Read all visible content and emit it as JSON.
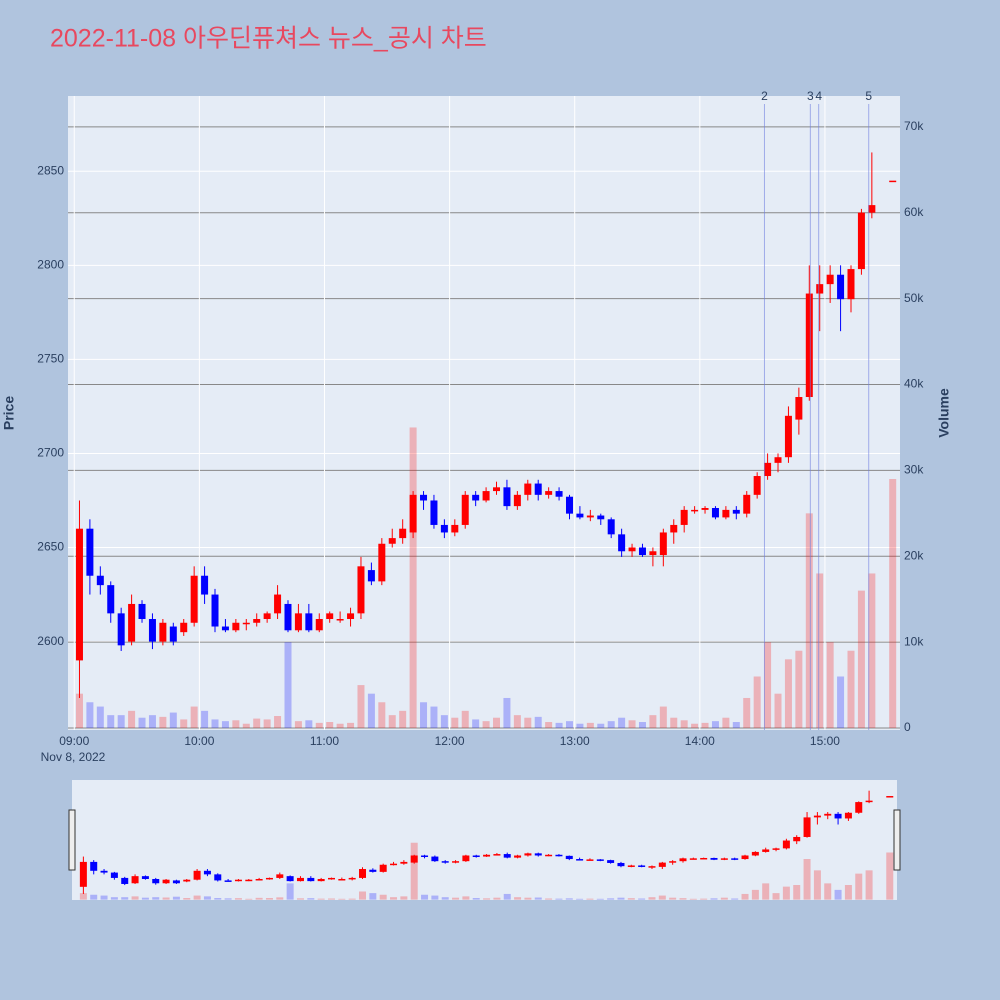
{
  "chart_data": {
    "type": "candlestick",
    "title": "2022-11-08 아우딘퓨쳐스 뉴스_공시 차트",
    "ylabel": "Price",
    "y2label": "Volume",
    "xdate_label": "Nov 8, 2022",
    "increasing_color": "#ff0000",
    "decreasing_color": "#0000ff",
    "x": [
      "2022-11-08 09:00",
      "2022-11-08 09:05",
      "2022-11-08 09:10",
      "2022-11-08 09:15",
      "2022-11-08 09:20",
      "2022-11-08 09:25",
      "2022-11-08 09:30",
      "2022-11-08 09:35",
      "2022-11-08 09:40",
      "2022-11-08 09:45",
      "2022-11-08 09:50",
      "2022-11-08 09:55",
      "2022-11-08 10:00",
      "2022-11-08 10:05",
      "2022-11-08 10:10",
      "2022-11-08 10:15",
      "2022-11-08 10:20",
      "2022-11-08 10:25",
      "2022-11-08 10:30",
      "2022-11-08 10:35",
      "2022-11-08 10:40",
      "2022-11-08 10:45",
      "2022-11-08 10:50",
      "2022-11-08 10:55",
      "2022-11-08 11:00",
      "2022-11-08 11:05",
      "2022-11-08 11:10",
      "2022-11-08 11:15",
      "2022-11-08 11:20",
      "2022-11-08 11:25",
      "2022-11-08 11:30",
      "2022-11-08 11:35",
      "2022-11-08 11:40",
      "2022-11-08 11:45",
      "2022-11-08 11:50",
      "2022-11-08 11:55",
      "2022-11-08 12:00",
      "2022-11-08 12:05",
      "2022-11-08 12:10",
      "2022-11-08 12:15",
      "2022-11-08 12:20",
      "2022-11-08 12:25",
      "2022-11-08 12:30",
      "2022-11-08 12:35",
      "2022-11-08 12:40",
      "2022-11-08 12:45",
      "2022-11-08 12:50",
      "2022-11-08 12:55",
      "2022-11-08 13:00",
      "2022-11-08 13:05",
      "2022-11-08 13:10",
      "2022-11-08 13:15",
      "2022-11-08 13:20",
      "2022-11-08 13:25",
      "2022-11-08 13:30",
      "2022-11-08 13:35",
      "2022-11-08 13:40",
      "2022-11-08 13:45",
      "2022-11-08 13:50",
      "2022-11-08 13:55",
      "2022-11-08 14:00",
      "2022-11-08 14:05",
      "2022-11-08 14:10",
      "2022-11-08 14:15",
      "2022-11-08 14:20",
      "2022-11-08 14:25",
      "2022-11-08 14:30",
      "2022-11-08 14:35",
      "2022-11-08 14:40",
      "2022-11-08 14:45",
      "2022-11-08 14:50",
      "2022-11-08 14:55",
      "2022-11-08 15:00",
      "2022-11-08 15:05",
      "2022-11-08 15:10",
      "2022-11-08 15:15",
      "2022-11-08 15:20",
      "2022-11-08 15:30"
    ],
    "open": [
      2590,
      2660,
      2635,
      2630,
      2615,
      2600,
      2620,
      2612,
      2600,
      2608,
      2605,
      2610,
      2635,
      2625,
      2608,
      2606,
      2610,
      2610,
      2612,
      2615,
      2620,
      2606,
      2615,
      2606,
      2612,
      2612,
      2612,
      2615,
      2638,
      2632,
      2652,
      2655,
      2658,
      2678,
      2675,
      2662,
      2658,
      2662,
      2678,
      2675,
      2680,
      2682,
      2672,
      2678,
      2684,
      2678,
      2680,
      2677,
      2668,
      2666,
      2667,
      2665,
      2657,
      2648,
      2650,
      2646,
      2646,
      2658,
      2662,
      2670,
      2670,
      2671,
      2666,
      2670,
      2668,
      2678,
      2688,
      2695,
      2698,
      2718,
      2730,
      2785,
      2790,
      2795,
      2782,
      2798,
      2828,
      2845
    ],
    "high": [
      2675,
      2665,
      2640,
      2632,
      2618,
      2625,
      2622,
      2615,
      2612,
      2610,
      2612,
      2640,
      2640,
      2628,
      2612,
      2612,
      2612,
      2615,
      2616,
      2630,
      2622,
      2620,
      2620,
      2615,
      2616,
      2616,
      2618,
      2645,
      2642,
      2655,
      2660,
      2665,
      2680,
      2680,
      2678,
      2665,
      2665,
      2680,
      2680,
      2682,
      2685,
      2686,
      2680,
      2686,
      2686,
      2682,
      2682,
      2678,
      2672,
      2670,
      2668,
      2666,
      2660,
      2652,
      2652,
      2650,
      2660,
      2665,
      2672,
      2672,
      2672,
      2672,
      2672,
      2672,
      2680,
      2690,
      2700,
      2700,
      2725,
      2735,
      2800,
      2800,
      2800,
      2800,
      2800,
      2830,
      2860,
      2845
    ],
    "low": [
      2570,
      2625,
      2625,
      2610,
      2595,
      2598,
      2610,
      2596,
      2598,
      2598,
      2603,
      2608,
      2620,
      2605,
      2605,
      2605,
      2606,
      2608,
      2610,
      2612,
      2605,
      2605,
      2605,
      2605,
      2610,
      2610,
      2608,
      2612,
      2630,
      2630,
      2650,
      2652,
      2655,
      2670,
      2660,
      2655,
      2656,
      2660,
      2672,
      2674,
      2678,
      2670,
      2670,
      2675,
      2675,
      2676,
      2675,
      2665,
      2665,
      2664,
      2662,
      2655,
      2645,
      2645,
      2645,
      2640,
      2640,
      2652,
      2658,
      2668,
      2668,
      2665,
      2665,
      2665,
      2666,
      2676,
      2686,
      2690,
      2695,
      2710,
      2728,
      2765,
      2780,
      2765,
      2775,
      2795,
      2825,
      2845
    ],
    "close": [
      2660,
      2635,
      2630,
      2615,
      2598,
      2620,
      2612,
      2600,
      2610,
      2600,
      2610,
      2635,
      2625,
      2608,
      2606,
      2610,
      2610,
      2612,
      2615,
      2625,
      2606,
      2615,
      2606,
      2612,
      2615,
      2612,
      2615,
      2640,
      2632,
      2652,
      2655,
      2660,
      2678,
      2675,
      2662,
      2658,
      2662,
      2678,
      2675,
      2680,
      2682,
      2672,
      2678,
      2684,
      2678,
      2680,
      2677,
      2668,
      2666,
      2667,
      2665,
      2657,
      2648,
      2650,
      2646,
      2648,
      2658,
      2662,
      2670,
      2670,
      2671,
      2666,
      2670,
      2668,
      2678,
      2688,
      2695,
      2698,
      2720,
      2730,
      2785,
      2790,
      2795,
      2782,
      2798,
      2828,
      2832,
      2845
    ],
    "volume": [
      4000,
      3000,
      2500,
      1500,
      1500,
      2000,
      1200,
      1500,
      1300,
      1800,
      1000,
      2500,
      2000,
      1000,
      800,
      900,
      500,
      1100,
      1000,
      1400,
      10000,
      800,
      900,
      600,
      700,
      500,
      600,
      5000,
      4000,
      3000,
      1500,
      2000,
      35000,
      3000,
      2500,
      1500,
      1200,
      2000,
      1000,
      800,
      1200,
      3500,
      1500,
      1200,
      1300,
      700,
      600,
      800,
      500,
      600,
      500,
      800,
      1200,
      900,
      700,
      1500,
      2500,
      1200,
      900,
      500,
      600,
      800,
      1200,
      700,
      3500,
      6000,
      10000,
      4000,
      8000,
      9000,
      25000,
      18000,
      10000,
      6000,
      9000,
      16000,
      18000,
      29000
    ],
    "xlim": [
      "2022-11-08 08:57",
      "2022-11-08 15:36"
    ],
    "xticks": [
      {
        "value": "2022-11-08 09:00",
        "label": "09:00"
      },
      {
        "value": "2022-11-08 10:00",
        "label": "10:00"
      },
      {
        "value": "2022-11-08 11:00",
        "label": "11:00"
      },
      {
        "value": "2022-11-08 12:00",
        "label": "12:00"
      },
      {
        "value": "2022-11-08 13:00",
        "label": "13:00"
      },
      {
        "value": "2022-11-08 14:00",
        "label": "14:00"
      },
      {
        "value": "2022-11-08 15:00",
        "label": "15:00"
      }
    ],
    "ylim": [
      2553,
      2890
    ],
    "yticks": [
      2600,
      2650,
      2700,
      2750,
      2800,
      2850
    ],
    "y2lim": [
      -230,
      73600
    ],
    "y2ticks": [
      0,
      {
        "value": 10000,
        "label": "10k"
      },
      {
        "value": 20000,
        "label": "20k"
      },
      {
        "value": 30000,
        "label": "30k"
      },
      {
        "value": 40000,
        "label": "40k"
      },
      {
        "value": 50000,
        "label": "50k"
      },
      {
        "value": 60000,
        "label": "60k"
      },
      {
        "value": 70000,
        "label": "70k"
      }
    ],
    "annotations": [
      {
        "x": "2022-11-08 14:31",
        "label": "2"
      },
      {
        "x": "2022-11-08 14:53",
        "label": "3"
      },
      {
        "x": "2022-11-08 14:57",
        "label": "4"
      },
      {
        "x": "2022-11-08 15:21",
        "label": "5"
      }
    ]
  }
}
